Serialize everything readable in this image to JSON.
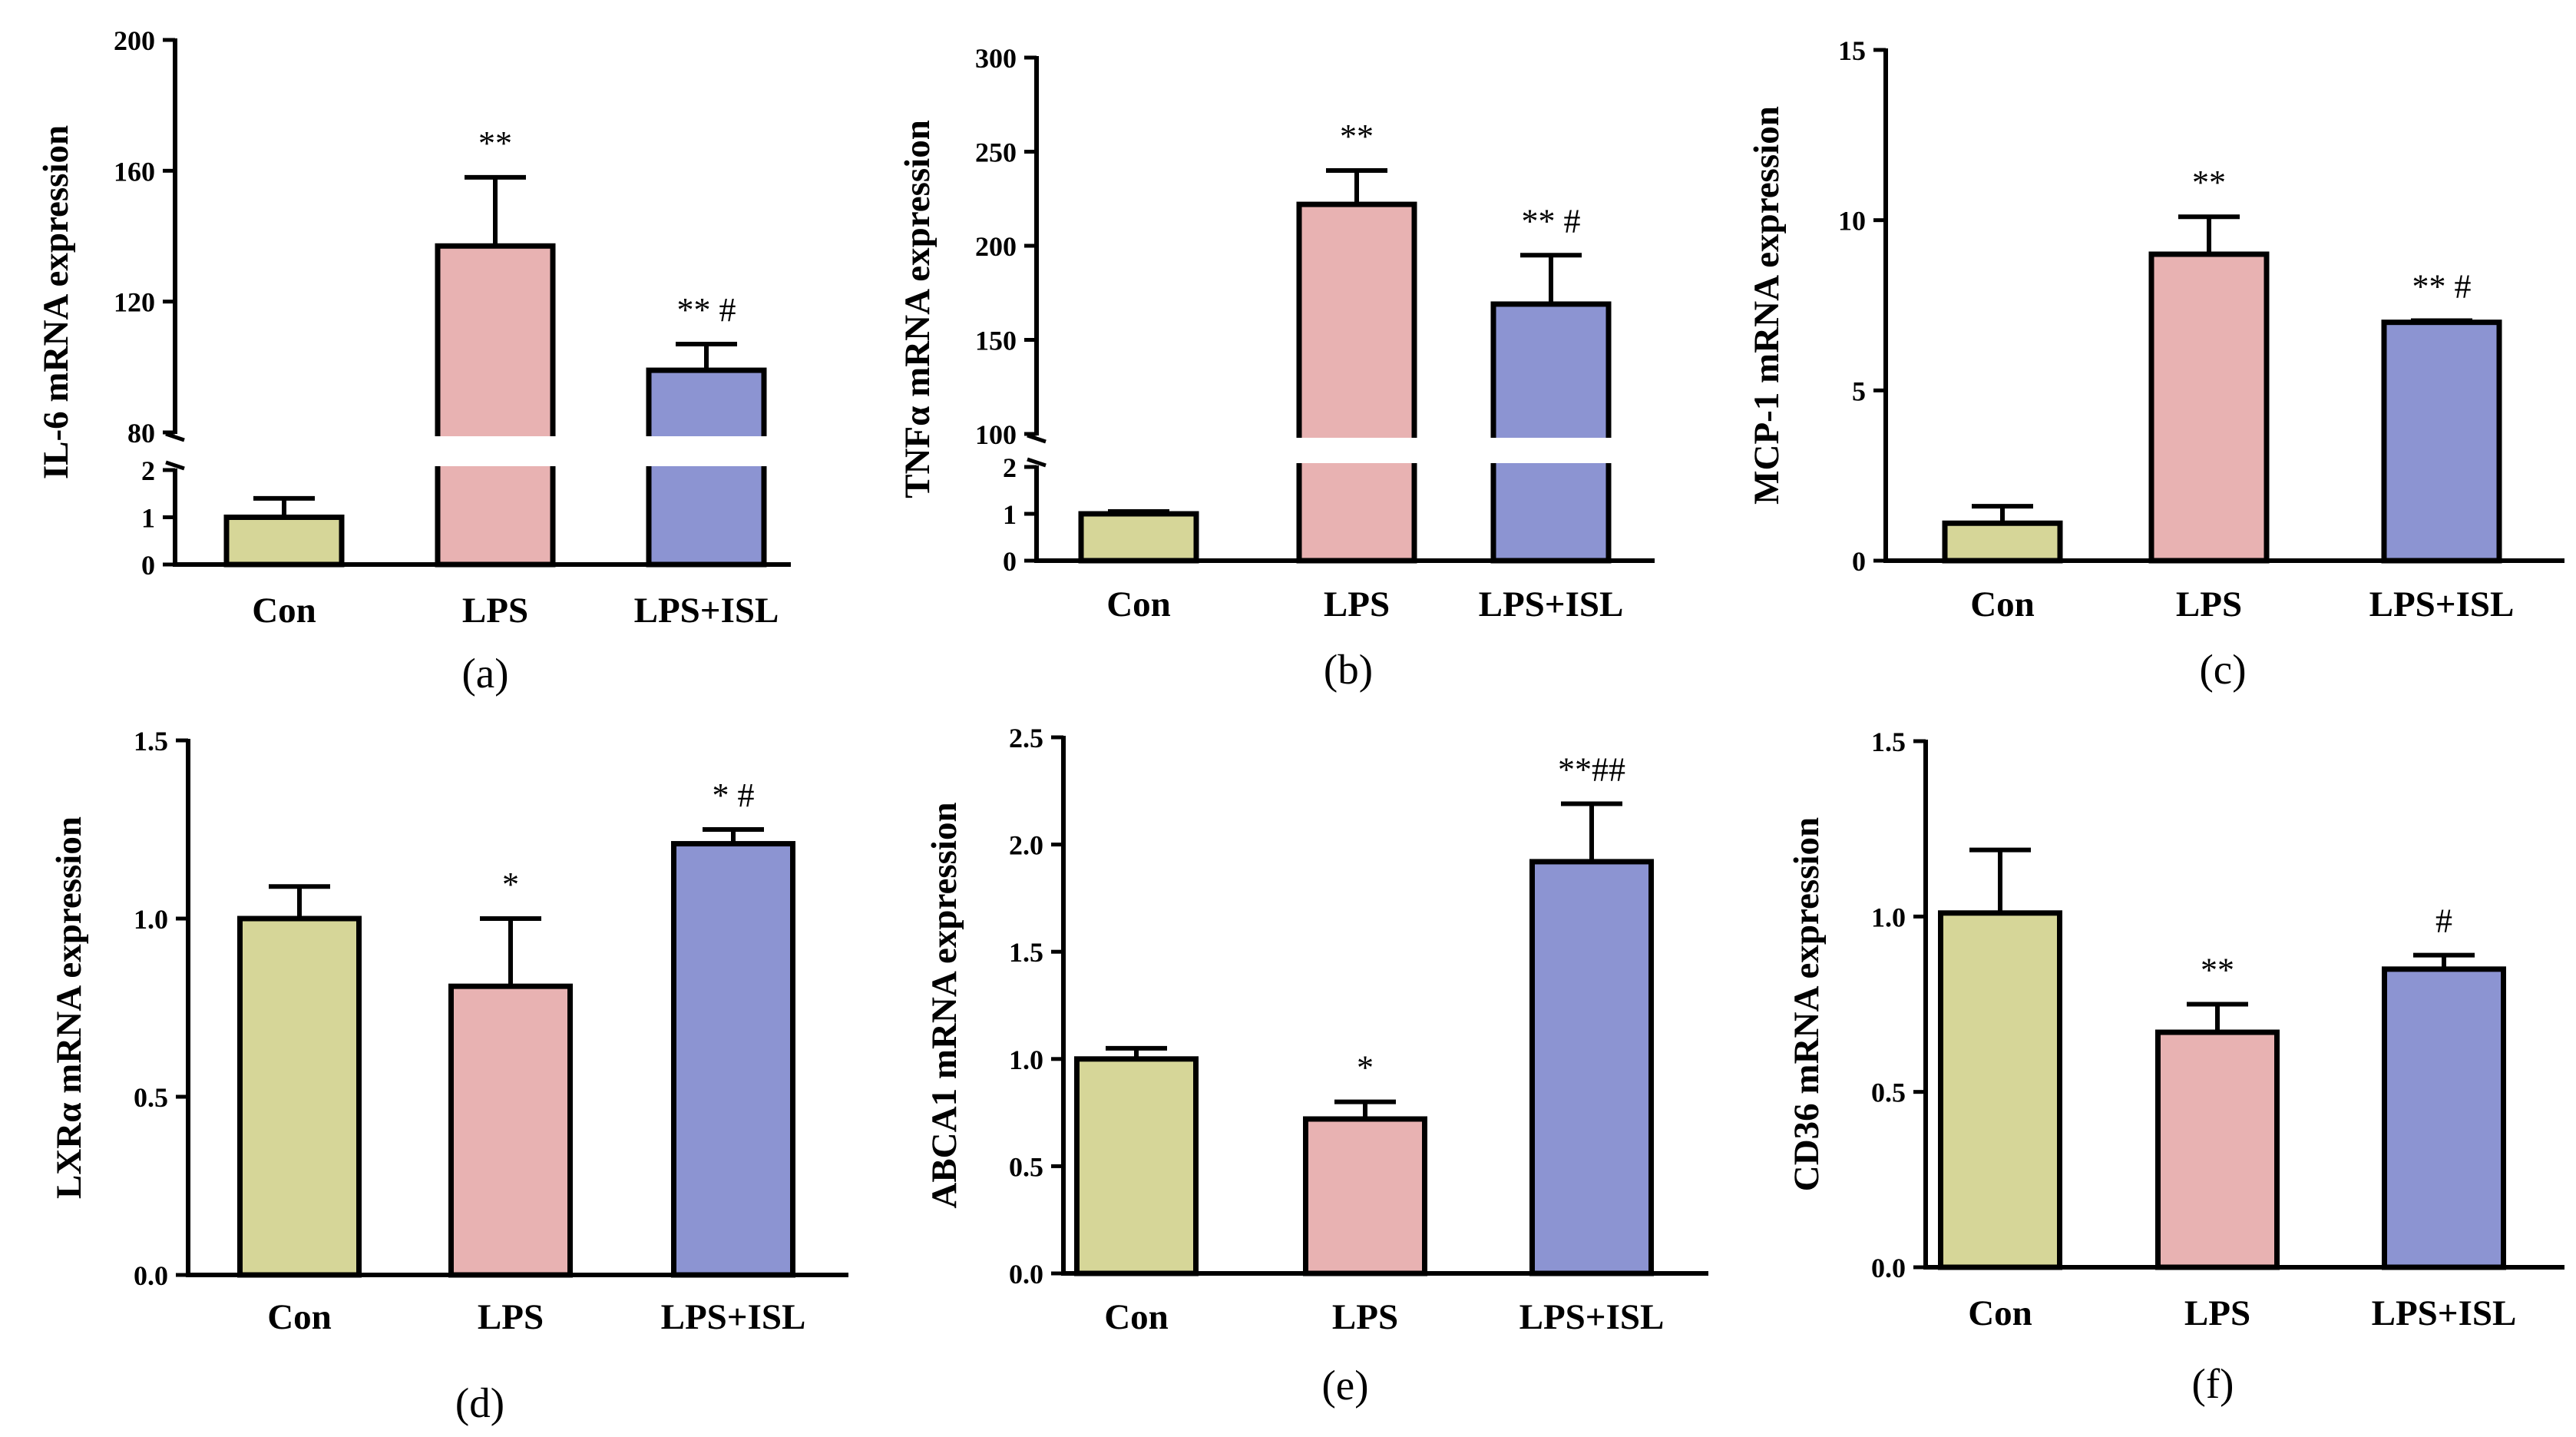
{
  "colors": {
    "Con": "#d6d698",
    "LPS": "#e8b2b2",
    "LPS+ISL": "#8c94d2",
    "stroke": "#000000"
  },
  "chart_data": [
    {
      "type": "bar",
      "panel_label": "(a)",
      "ylabel": "IL-6 mRNA expression",
      "categories": [
        "Con",
        "LPS",
        "LPS+ISL"
      ],
      "values": [
        1.0,
        137,
        99
      ],
      "errors": [
        0.4,
        21,
        8
      ],
      "significance": [
        "",
        "**",
        "** #"
      ],
      "broken_axis": true,
      "ylim_lower": [
        0,
        2
      ],
      "ylim_upper": [
        80,
        200
      ],
      "yticks_lower": [
        "0",
        "1",
        "2"
      ],
      "yticks_upper": [
        "80",
        "120",
        "160",
        "200"
      ]
    },
    {
      "type": "bar",
      "panel_label": "(b)",
      "ylabel": "TNFα mRNA expression",
      "categories": [
        "Con",
        "LPS",
        "LPS+ISL"
      ],
      "values": [
        1.0,
        222,
        169
      ],
      "errors": [
        0.05,
        18,
        26
      ],
      "significance": [
        "",
        "**",
        "** #"
      ],
      "broken_axis": true,
      "ylim_lower": [
        0,
        2
      ],
      "ylim_upper": [
        100,
        300
      ],
      "yticks_lower": [
        "0",
        "1",
        "2"
      ],
      "yticks_upper": [
        "100",
        "150",
        "200",
        "250",
        "300"
      ]
    },
    {
      "type": "bar",
      "panel_label": "(c)",
      "ylabel": "MCP-1 mRNA expression",
      "categories": [
        "Con",
        "LPS",
        "LPS+ISL"
      ],
      "values": [
        1.1,
        9.0,
        7.0
      ],
      "errors": [
        0.5,
        1.1,
        0.05
      ],
      "significance": [
        "",
        "**",
        "** #"
      ],
      "broken_axis": false,
      "ylim": [
        0,
        15
      ],
      "yticks": [
        "0",
        "5",
        "10",
        "15"
      ]
    },
    {
      "type": "bar",
      "panel_label": "(d)",
      "ylabel": "LXRα mRNA expression",
      "categories": [
        "Con",
        "LPS",
        "LPS+ISL"
      ],
      "values": [
        1.0,
        0.81,
        1.21
      ],
      "errors": [
        0.09,
        0.19,
        0.04
      ],
      "significance": [
        "",
        "*",
        "*  #"
      ],
      "broken_axis": false,
      "ylim": [
        0,
        1.5
      ],
      "yticks": [
        "0.0",
        "0.5",
        "1.0",
        "1.5"
      ]
    },
    {
      "type": "bar",
      "panel_label": "(e)",
      "ylabel": "ABCA1 mRNA expression",
      "categories": [
        "Con",
        "LPS",
        "LPS+ISL"
      ],
      "values": [
        1.0,
        0.72,
        1.92
      ],
      "errors": [
        0.05,
        0.08,
        0.27
      ],
      "significance": [
        "",
        "*",
        "**##"
      ],
      "broken_axis": false,
      "ylim": [
        0,
        2.5
      ],
      "yticks": [
        "0.0",
        "0.5",
        "1.0",
        "1.5",
        "2.0",
        "2.5"
      ]
    },
    {
      "type": "bar",
      "panel_label": "(f)",
      "ylabel": "CD36 mRNA expression",
      "categories": [
        "Con",
        "LPS",
        "LPS+ISL"
      ],
      "values": [
        1.01,
        0.67,
        0.85
      ],
      "errors": [
        0.18,
        0.08,
        0.04
      ],
      "significance": [
        "",
        "**",
        "#"
      ],
      "broken_axis": false,
      "ylim": [
        0,
        1.5
      ],
      "yticks": [
        "0.0",
        "0.5",
        "1.0",
        "1.5"
      ]
    }
  ]
}
